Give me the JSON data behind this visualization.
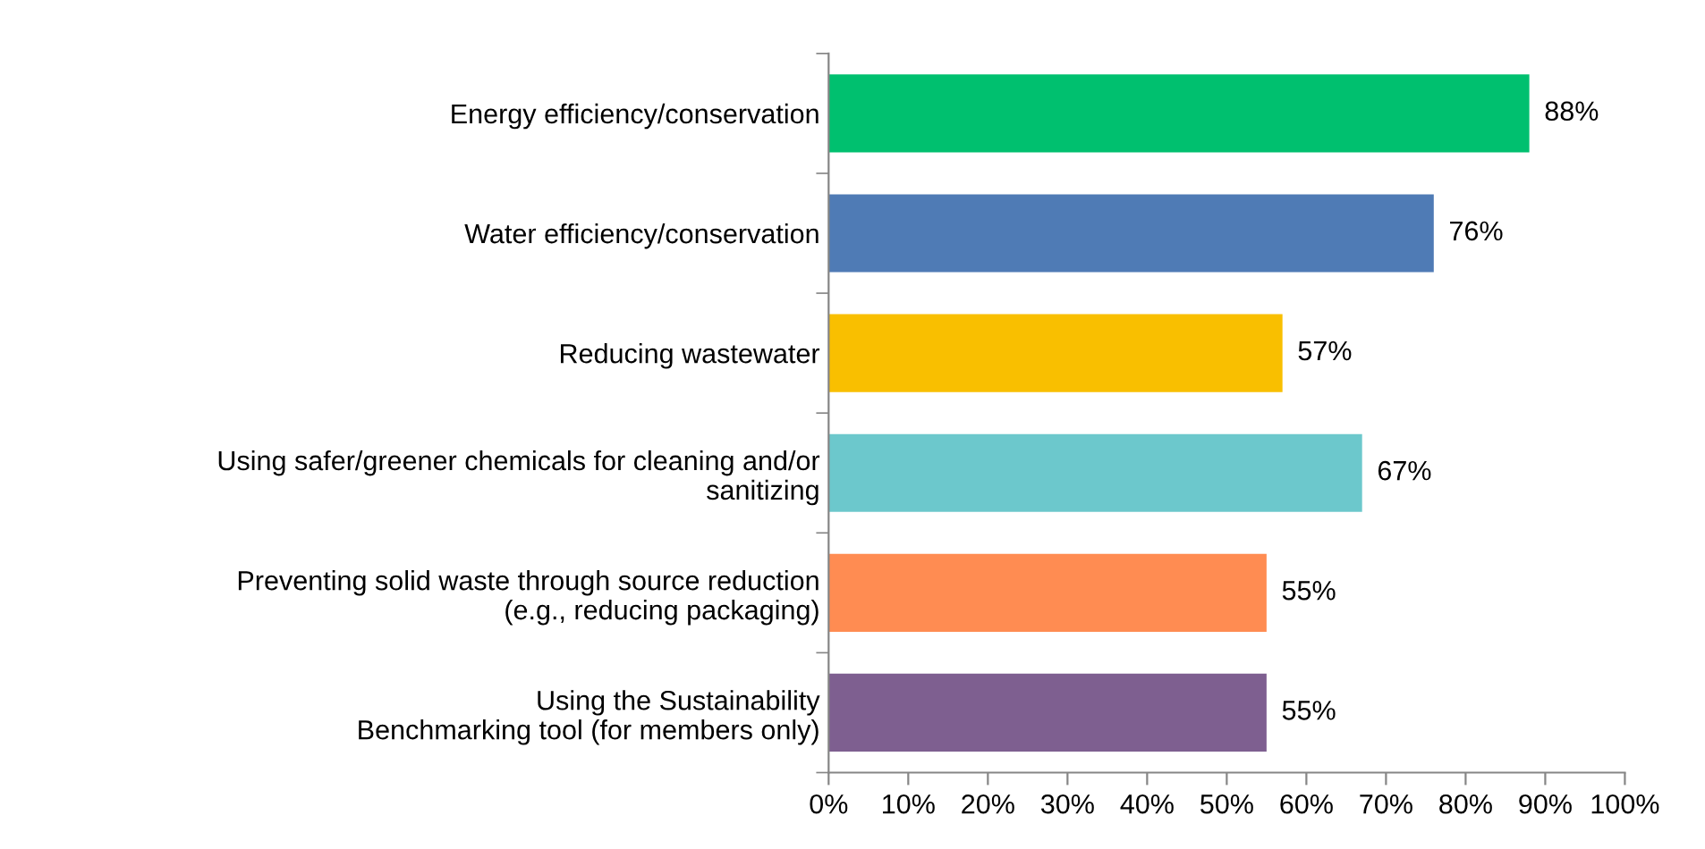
{
  "chart_data": {
    "type": "bar",
    "orientation": "horizontal",
    "categories": [
      "Energy efficiency/conservation",
      "Water efficiency/conservation",
      "Reducing wastewater",
      "Using safer/greener chemicals for cleaning and/or\nsanitizing",
      "Preventing solid waste through source reduction\n(e.g., reducing packaging)",
      "Using the Sustainability\nBenchmarking tool (for members only)"
    ],
    "values": [
      88,
      76,
      57,
      67,
      55,
      55
    ],
    "colors": [
      "#00c06f",
      "#4f7bb5",
      "#f9bf00",
      "#6cc8cc",
      "#ff8c52",
      "#7e5f90"
    ],
    "xlim": [
      0,
      100
    ],
    "xticks": [
      {
        "value": 0,
        "label": "0%"
      },
      {
        "value": 10,
        "label": "10%"
      },
      {
        "value": 20,
        "label": "20%"
      },
      {
        "value": 30,
        "label": "30%"
      },
      {
        "value": 40,
        "label": "40%"
      },
      {
        "value": 50,
        "label": "50%"
      },
      {
        "value": 60,
        "label": "60%"
      },
      {
        "value": 70,
        "label": "70%"
      },
      {
        "value": 80,
        "label": "80%"
      },
      {
        "value": 90,
        "label": "90%"
      },
      {
        "value": 100,
        "label": "100%"
      }
    ],
    "value_labels": [
      "88%",
      "76%",
      "57%",
      "67%",
      "55%",
      "55%"
    ],
    "grid": false,
    "legend": false
  }
}
